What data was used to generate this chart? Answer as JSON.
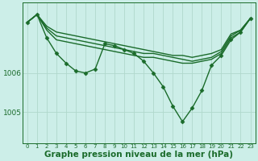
{
  "background_color": "#cceee8",
  "grid_color": "#b0d8cc",
  "line_color": "#1a6b2a",
  "marker": "D",
  "markersize": 2.5,
  "linewidth": 1.0,
  "xlabel": "Graphe pression niveau de la mer (hPa)",
  "xlabel_fontsize": 7.5,
  "xlabel_bold": true,
  "yticks": [
    1005,
    1006
  ],
  "ylim": [
    1004.2,
    1007.8
  ],
  "xlim": [
    -0.5,
    23.5
  ],
  "xticks": [
    0,
    1,
    2,
    3,
    4,
    5,
    6,
    7,
    8,
    9,
    10,
    11,
    12,
    13,
    14,
    15,
    16,
    17,
    18,
    19,
    20,
    21,
    22,
    23
  ],
  "xtick_fontsize": 5.0,
  "ytick_fontsize": 6.5,
  "series": [
    [
      1007.3,
      1007.5,
      1007.2,
      1007.05,
      1007.0,
      1006.95,
      1006.9,
      1006.85,
      1006.8,
      1006.75,
      1006.7,
      1006.65,
      1006.6,
      1006.55,
      1006.5,
      1006.45,
      1006.45,
      1006.4,
      1006.45,
      1006.5,
      1006.6,
      1007.0,
      1007.1,
      1007.4
    ],
    [
      1007.3,
      1007.5,
      1007.15,
      1006.95,
      1006.9,
      1006.85,
      1006.8,
      1006.75,
      1006.7,
      1006.65,
      1006.6,
      1006.55,
      1006.5,
      1006.5,
      1006.45,
      1006.4,
      1006.35,
      1006.3,
      1006.35,
      1006.4,
      1006.55,
      1006.95,
      1007.1,
      1007.4
    ],
    [
      1007.3,
      1007.5,
      1007.1,
      1006.85,
      1006.8,
      1006.75,
      1006.7,
      1006.65,
      1006.6,
      1006.55,
      1006.5,
      1006.45,
      1006.4,
      1006.4,
      1006.35,
      1006.3,
      1006.25,
      1006.25,
      1006.3,
      1006.35,
      1006.5,
      1006.9,
      1007.05,
      1007.4
    ],
    [
      1007.3,
      1007.5,
      1006.9,
      1006.5,
      1006.25,
      1006.05,
      1006.0,
      1006.1,
      1006.75,
      1006.7,
      1006.6,
      1006.5,
      1006.3,
      1006.0,
      1005.65,
      1005.15,
      1004.75,
      1005.1,
      1005.55,
      1006.2,
      1006.45,
      1006.85,
      1007.05,
      1007.4
    ]
  ],
  "has_markers": [
    false,
    false,
    false,
    true
  ]
}
